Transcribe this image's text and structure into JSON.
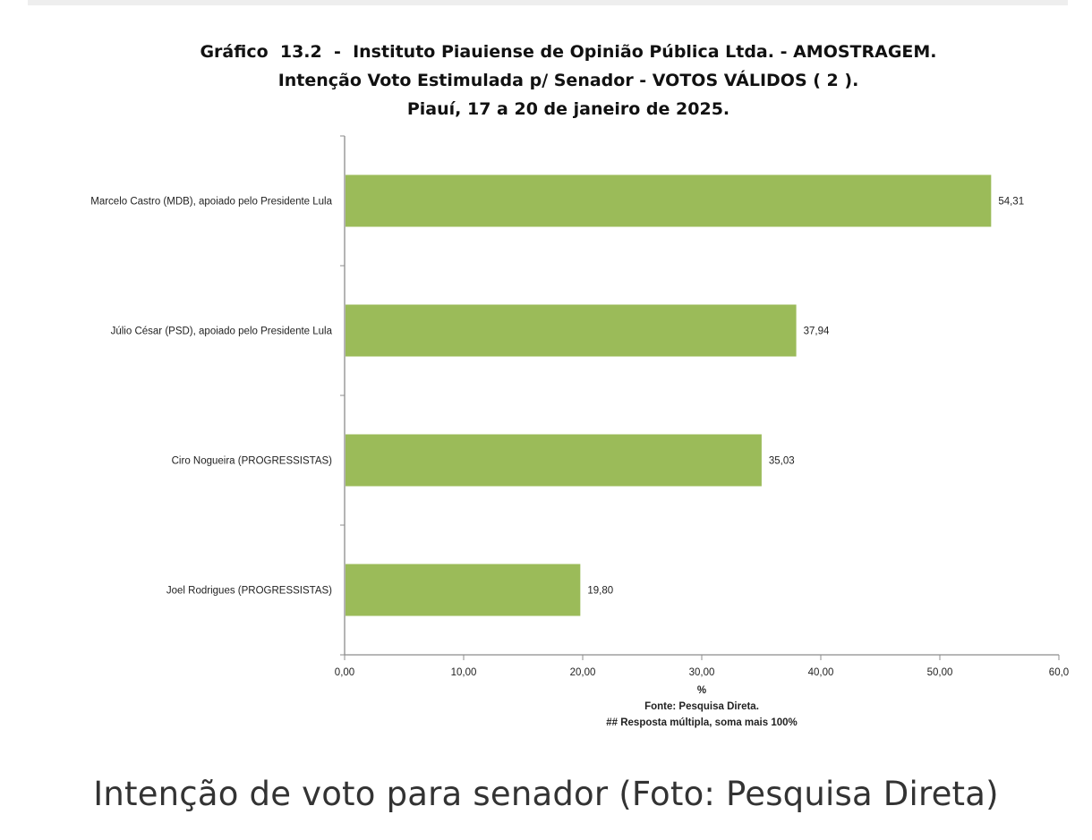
{
  "chart_data": {
    "type": "bar",
    "orientation": "horizontal",
    "title_lines": [
      "Gráfico  13.2  -  Instituto Piauiense de Opinião Pública Ltda. - AMOSTRAGEM.",
      "Intenção Voto Estimulada p/ Senador - VOTOS VÁLIDOS ( 2 ).",
      "Piauí, 17 a 20 de janeiro de 2025."
    ],
    "categories": [
      "Marcelo Castro (MDB), apoiado pelo Presidente Lula",
      "Júlio César (PSD), apoiado pelo Presidente Lula",
      "Ciro Nogueira (PROGRESSISTAS)",
      "Joel Rodrigues (PROGRESSISTAS)"
    ],
    "values": [
      54.31,
      37.94,
      35.03,
      19.8
    ],
    "value_labels": [
      "54,31",
      "37,94",
      "35,03",
      "19,80"
    ],
    "xlim": [
      0,
      60
    ],
    "xticks": [
      0,
      10,
      20,
      30,
      40,
      50,
      60
    ],
    "xtick_labels": [
      "0,00",
      "10,00",
      "20,00",
      "30,00",
      "40,00",
      "50,00",
      "60,0"
    ],
    "xlabel": "%",
    "notes": [
      "Fonte: Pesquisa Direta.",
      "##  Resposta múltipla, soma mais 100%"
    ],
    "bar_color": "#9bbb59",
    "grid": false,
    "legend": "none"
  },
  "caption": "Intenção de voto para senador (Foto: Pesquisa Direta)"
}
